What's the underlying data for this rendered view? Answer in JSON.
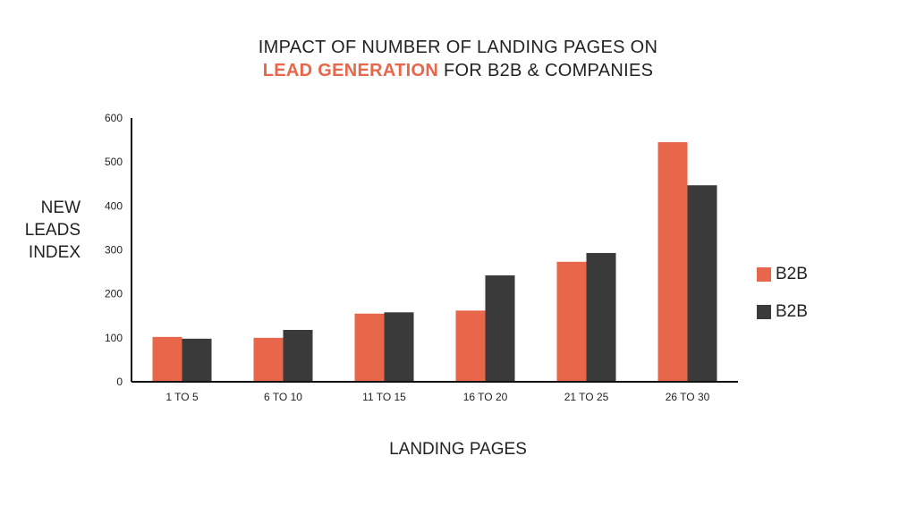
{
  "title": {
    "line1": "IMPACT OF NUMBER OF LANDING PAGES ON",
    "line2_accent": "LEAD GENERATION",
    "line2_rest": " FOR B2B & COMPANIES"
  },
  "colors": {
    "accent": "#e8664a",
    "series1": "#e8664a",
    "series2": "#3a3a3a",
    "axis": "#111111",
    "text": "#222222"
  },
  "chart_data": {
    "type": "bar",
    "title": "IMPACT OF NUMBER OF LANDING PAGES ON LEAD GENERATION FOR B2B & COMPANIES",
    "xlabel": "LANDING PAGES",
    "ylabel_lines": [
      "NEW",
      "LEADS",
      "INDEX"
    ],
    "categories": [
      "1 TO 5",
      "6 TO 10",
      "11 TO 15",
      "16 TO 20",
      "21 TO 25",
      "26 TO 30"
    ],
    "yticks": [
      0,
      100,
      200,
      300,
      400,
      500,
      600
    ],
    "ylim": [
      0,
      600
    ],
    "grid": false,
    "legend_position": "right",
    "series": [
      {
        "name": "B2B",
        "values": [
          102,
          100,
          155,
          162,
          273,
          545
        ]
      },
      {
        "name": "B2B",
        "values": [
          98,
          118,
          158,
          242,
          293,
          447
        ]
      }
    ]
  }
}
